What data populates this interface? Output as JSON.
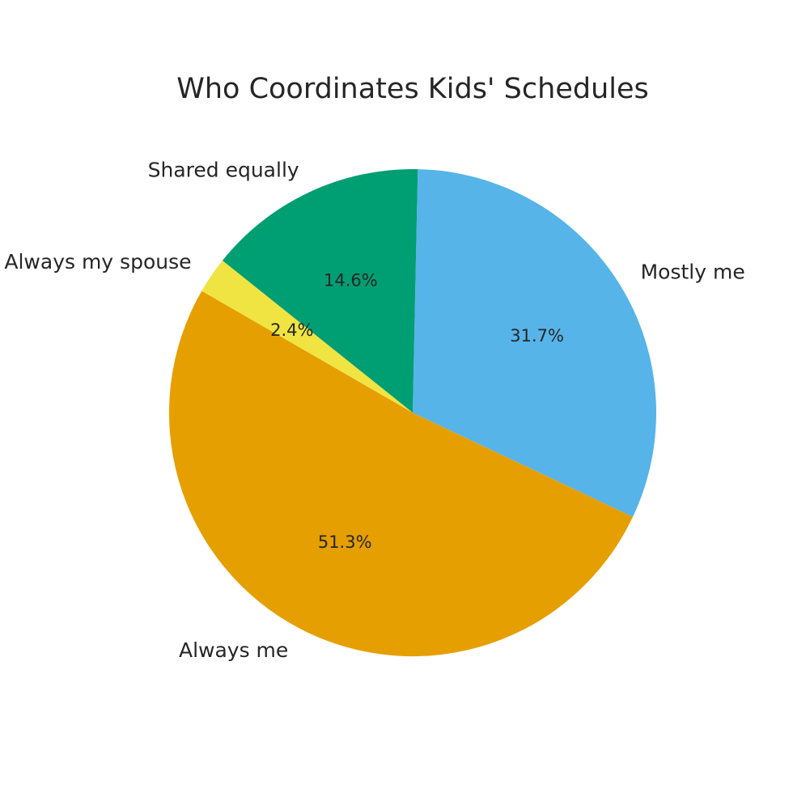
{
  "chart_data": {
    "type": "pie",
    "title": "Who Coordinates Kids' Schedules",
    "start_angle_deg": 150,
    "direction": "counterclockwise",
    "slices": [
      {
        "label": "Always me",
        "value": 51.3,
        "pct_label": "51.3%",
        "color": "#E69F00"
      },
      {
        "label": "Mostly me",
        "value": 31.7,
        "pct_label": "31.7%",
        "color": "#56B4E9"
      },
      {
        "label": "Shared equally",
        "value": 14.6,
        "pct_label": "14.6%",
        "color": "#009E73"
      },
      {
        "label": "Always my spouse",
        "value": 2.4,
        "pct_label": "2.4%",
        "color": "#F0E442"
      }
    ]
  }
}
